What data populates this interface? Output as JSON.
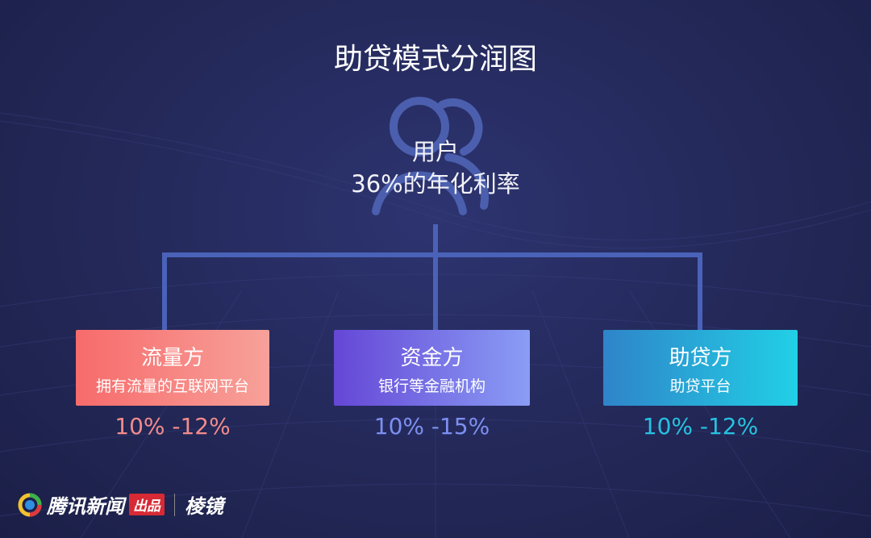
{
  "title": "助贷模式分润图",
  "user": {
    "label": "用户",
    "rate": "36%的年化利率",
    "icon": "users-icon"
  },
  "parties": [
    {
      "name": "流量方",
      "desc": "拥有流量的互联网平台",
      "share": "10% -12%",
      "color_from": "#f76b6b",
      "color_to": "#f7a19a",
      "share_color": "#f28b8b"
    },
    {
      "name": "资金方",
      "desc": "银行等金融机构",
      "share": "10% -15%",
      "color_from": "#6547d6",
      "color_to": "#8a9df5",
      "share_color": "#7d8ff0"
    },
    {
      "name": "助贷方",
      "desc": "助贷平台",
      "share": "10% -12%",
      "color_from": "#2f84c9",
      "color_to": "#21d0e6",
      "share_color": "#27c2e0"
    }
  ],
  "footer": {
    "brand": "腾讯新闻",
    "badge": "出品",
    "sub": "棱镜"
  },
  "colors": {
    "connector": "#4a62b8",
    "background": "#232858"
  }
}
